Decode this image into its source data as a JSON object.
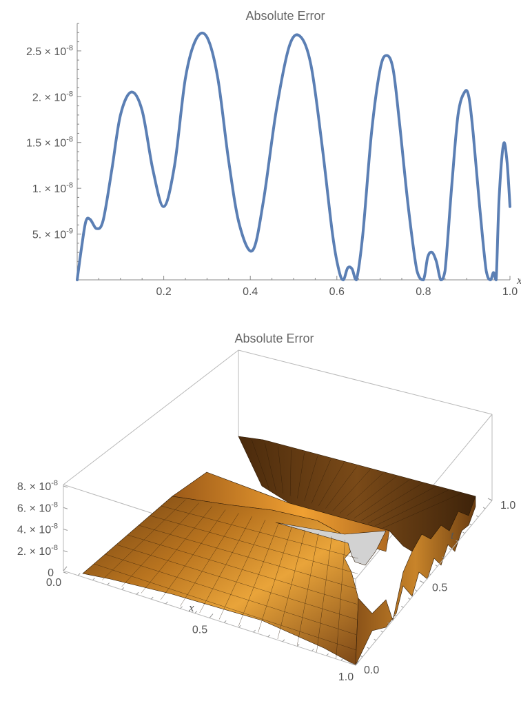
{
  "chart_data": [
    {
      "type": "line",
      "title": "Absolute Error",
      "xlabel": "x",
      "ylabel": "",
      "xlim": [
        0,
        1
      ],
      "ylim": [
        0,
        2.8e-08
      ],
      "x_ticks": [
        {
          "value": 0.2,
          "label": "0.2"
        },
        {
          "value": 0.4,
          "label": "0.4"
        },
        {
          "value": 0.6,
          "label": "0.6"
        },
        {
          "value": 0.8,
          "label": "0.8"
        },
        {
          "value": 1.0,
          "label": "1.0"
        }
      ],
      "y_ticks": [
        {
          "value": 5e-09,
          "mant": "5.",
          "exp": "-9"
        },
        {
          "value": 1e-08,
          "mant": "1.",
          "exp": "-8"
        },
        {
          "value": 1.5e-08,
          "mant": "1.5",
          "exp": "-8"
        },
        {
          "value": 2e-08,
          "mant": "2.",
          "exp": "-8"
        },
        {
          "value": 2.5e-08,
          "mant": "2.5",
          "exp": "-8"
        }
      ],
      "line_color": "#5b7fb4",
      "series": [
        {
          "x": [
            0.0,
            0.01,
            0.02,
            0.03,
            0.045,
            0.06,
            0.08,
            0.1,
            0.125,
            0.15,
            0.175,
            0.2,
            0.225,
            0.25,
            0.275,
            0.3,
            0.325,
            0.35,
            0.375,
            0.405,
            0.43,
            0.46,
            0.49,
            0.515,
            0.54,
            0.565,
            0.59,
            0.605,
            0.615,
            0.625,
            0.635,
            0.645,
            0.66,
            0.68,
            0.7,
            0.715,
            0.73,
            0.745,
            0.765,
            0.785,
            0.8,
            0.81,
            0.82,
            0.83,
            0.84,
            0.85,
            0.865,
            0.88,
            0.895,
            0.905,
            0.915,
            0.93,
            0.945,
            0.955,
            0.962,
            0.968,
            0.975,
            0.985,
            0.993,
            1.0
          ],
          "y": [
            0.0,
            3.5e-09,
            6.4e-09,
            6.6e-09,
            5.6e-09,
            6.5e-09,
            1.2e-08,
            1.8e-08,
            2.05e-08,
            1.85e-08,
            1.2e-08,
            8e-09,
            1.25e-08,
            2.2e-08,
            2.63e-08,
            2.65e-08,
            2.2e-08,
            1.3e-08,
            6e-09,
            3.2e-09,
            8.5e-09,
            1.85e-08,
            2.55e-08,
            2.66e-08,
            2.35e-08,
            1.5e-08,
            5e-09,
            1e-09,
            0.0,
            1.3e-09,
            1.2e-09,
            0.0,
            5e-09,
            1.6e-08,
            2.3e-08,
            2.45e-08,
            2.3e-08,
            1.7e-08,
            8e-09,
            1e-09,
            0.0,
            2.5e-09,
            3e-09,
            2e-09,
            0.0,
            1e-09,
            1e-08,
            1.8e-08,
            2.05e-08,
            2e-08,
            1.6e-08,
            8e-09,
            1e-09,
            0.0,
            8e-10,
            0.0,
            9e-09,
            1.48e-08,
            1.3e-08,
            8e-09
          ]
        }
      ]
    },
    {
      "type": "surface",
      "title": "Absolute Error",
      "xlabel": "x",
      "ylabel": "t",
      "zlabel": "",
      "xlim": [
        0,
        1
      ],
      "ylim": [
        0,
        1
      ],
      "zlim": [
        0,
        8e-08
      ],
      "x_ticks": [
        {
          "value": 0.0,
          "label": "0.0"
        },
        {
          "value": 0.5,
          "label": "0.5"
        },
        {
          "value": 1.0,
          "label": "1.0"
        }
      ],
      "t_ticks": [
        {
          "value": 0.0,
          "label": "0.0"
        },
        {
          "value": 0.5,
          "label": "0.5"
        },
        {
          "value": 1.0,
          "label": "1.0"
        }
      ],
      "z_ticks": [
        {
          "value": 0,
          "plain": "0"
        },
        {
          "value": 2e-08,
          "mant": "2.",
          "exp": "-8"
        },
        {
          "value": 4e-08,
          "mant": "4.",
          "exp": "-8"
        },
        {
          "value": 6e-08,
          "mant": "6.",
          "exp": "-8"
        },
        {
          "value": 8e-08,
          "mant": "8.",
          "exp": "-8"
        }
      ],
      "surface_color": "#c8842a"
    }
  ]
}
